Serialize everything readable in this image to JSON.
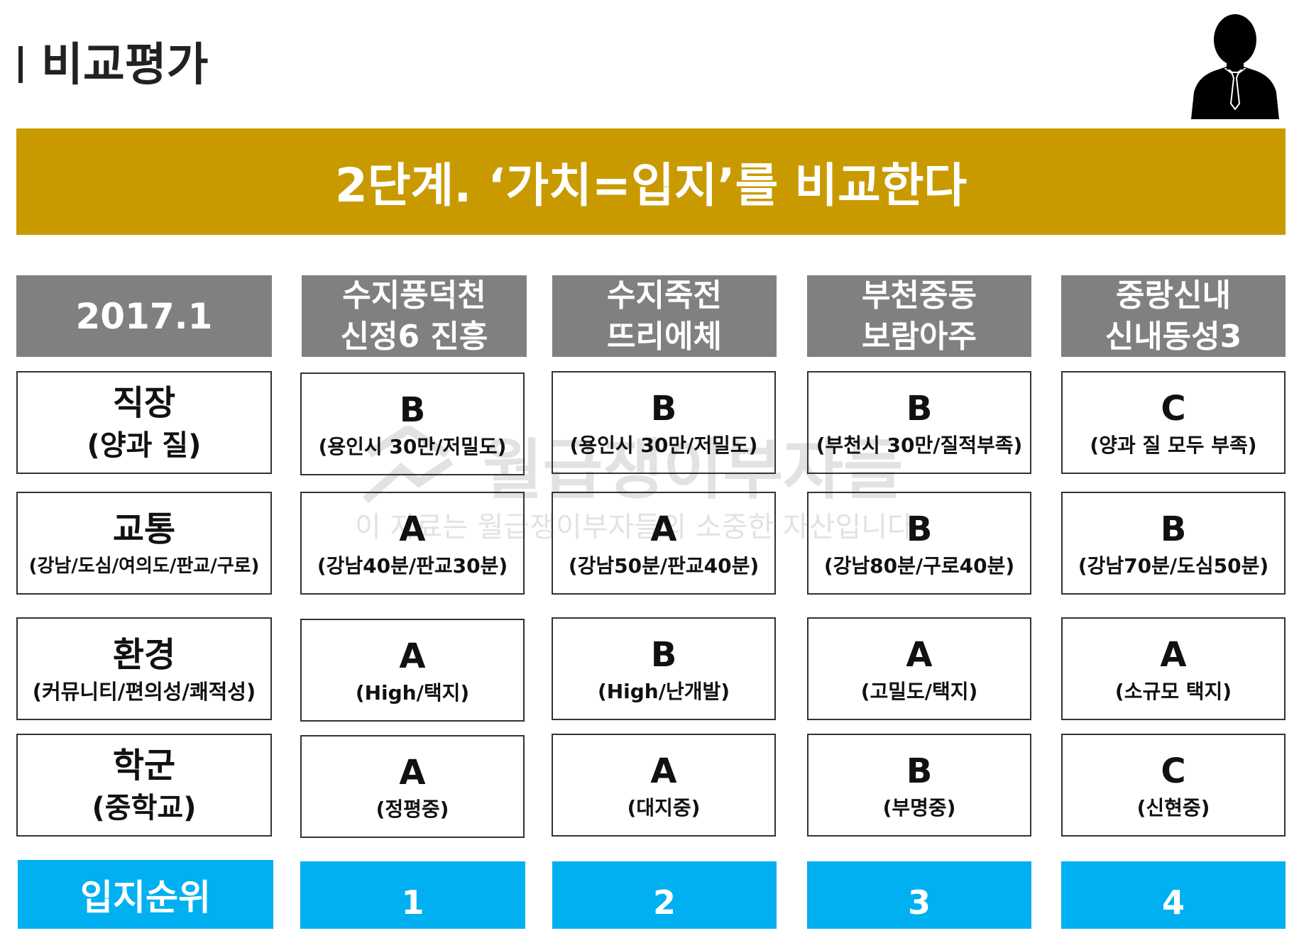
{
  "page_title": "비교평가",
  "banner_text": "2단계. ‘가치=입지’를 비교한다",
  "watermark": {
    "main": "월급쟁이부자들",
    "sub": "이 자료는 월급쟁이부자들의 소중한 자산입니다"
  },
  "table": {
    "date_label": "2017.1",
    "areas": [
      {
        "line1": "수지풍덕천",
        "line2": "신정6 진흥"
      },
      {
        "line1": "수지죽전",
        "line2": "뜨리에체"
      },
      {
        "line1": "부천중동",
        "line2": "보람아주"
      },
      {
        "line1": "중랑신내",
        "line2": "신내동성3"
      }
    ],
    "categories": [
      {
        "name": "직장",
        "sub": "(양과 질)"
      },
      {
        "name": "교통",
        "sub": "(강남/도심/여의도/판교/구로)"
      },
      {
        "name": "환경",
        "sub": "(커뮤니티/편의성/쾌적성)"
      },
      {
        "name": "학군",
        "sub": "(중학교)"
      }
    ],
    "ratings": [
      [
        {
          "grade": "B",
          "note": "(용인시 30만/저밀도)"
        },
        {
          "grade": "B",
          "note": "(용인시 30만/저밀도)"
        },
        {
          "grade": "B",
          "note": "(부천시 30만/질적부족)"
        },
        {
          "grade": "C",
          "note": "(양과 질 모두 부족)"
        }
      ],
      [
        {
          "grade": "A",
          "note": "(강남40분/판교30분)"
        },
        {
          "grade": "A",
          "note": "(강남50분/판교40분)"
        },
        {
          "grade": "B",
          "note": "(강남80분/구로40분)"
        },
        {
          "grade": "B",
          "note": "(강남70분/도심50분)"
        }
      ],
      [
        {
          "grade": "A",
          "note": "(High/택지)"
        },
        {
          "grade": "B",
          "note": "(High/난개발)"
        },
        {
          "grade": "A",
          "note": "(고밀도/택지)"
        },
        {
          "grade": "A",
          "note": "(소규모 택지)"
        }
      ],
      [
        {
          "grade": "A",
          "note": "(정평중)"
        },
        {
          "grade": "A",
          "note": "(대지중)"
        },
        {
          "grade": "B",
          "note": "(부명중)"
        },
        {
          "grade": "C",
          "note": "(신현중)"
        }
      ]
    ],
    "rank_label": "입지순위",
    "ranks": [
      "1",
      "2",
      "3",
      "4"
    ]
  },
  "colors": {
    "banner": "#c99a00",
    "header_gray": "#808080",
    "rank_blue": "#00b0f0"
  }
}
